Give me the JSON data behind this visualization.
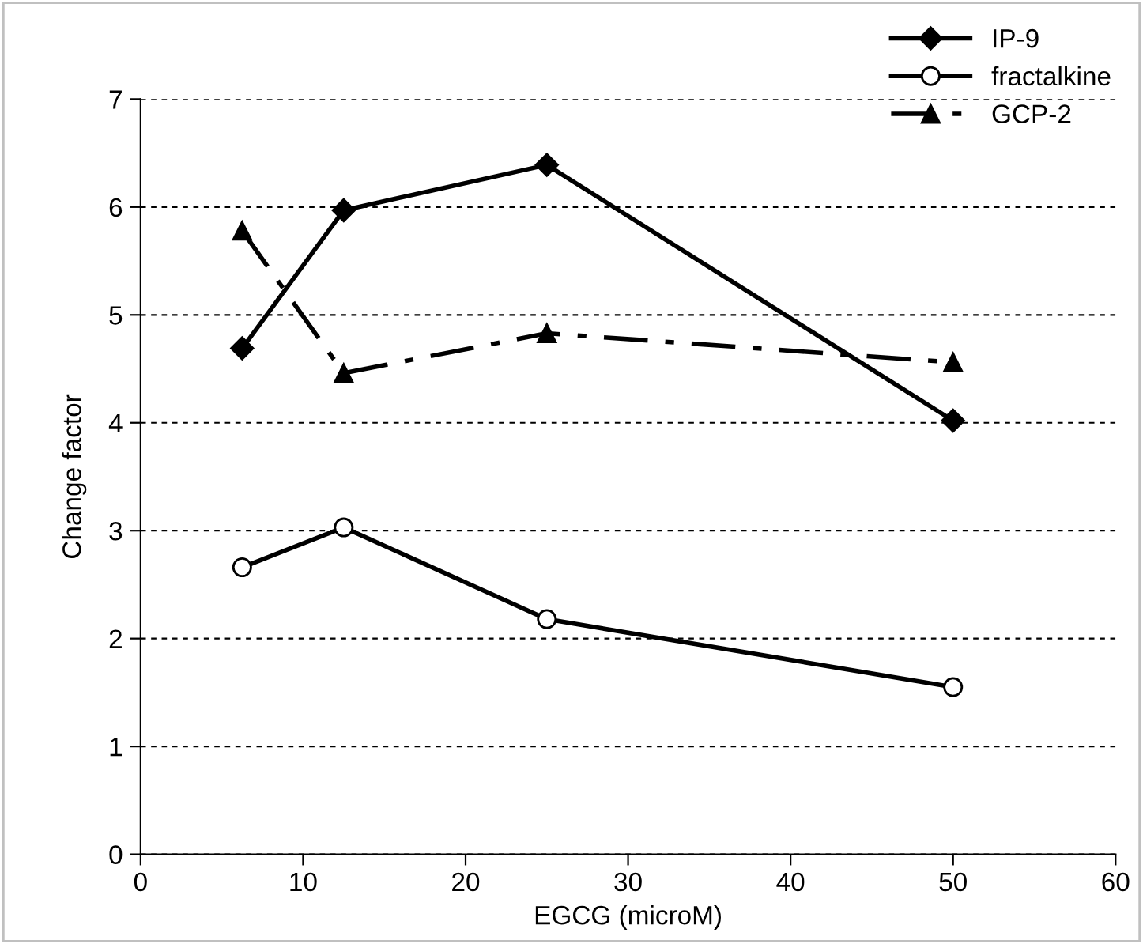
{
  "chart_data": {
    "type": "line",
    "xlabel": "EGCG (microM)",
    "ylabel": "Change factor",
    "x": [
      6.25,
      12.5,
      25,
      50
    ],
    "series": [
      {
        "name": "IP-9",
        "color": "#000000",
        "marker": "diamond",
        "line_style": "solid",
        "values": [
          4.69,
          5.97,
          6.39,
          4.02
        ]
      },
      {
        "name": "fractalkine",
        "color": "#000000",
        "marker": "circle",
        "line_style": "solid",
        "values": [
          2.66,
          3.03,
          2.18,
          1.55
        ]
      },
      {
        "name": "GCP-2",
        "color": "#000000",
        "marker": "triangle",
        "line_style": "dashdot",
        "values": [
          5.78,
          4.46,
          4.83,
          4.56
        ]
      }
    ],
    "xlim": [
      0,
      60
    ],
    "xticks": [
      0,
      10,
      20,
      30,
      40,
      50,
      60
    ],
    "ylim": [
      0,
      7
    ],
    "yticks": [
      0,
      1,
      2,
      3,
      4,
      5,
      6,
      7
    ],
    "grid": "y",
    "legend": "top right"
  }
}
